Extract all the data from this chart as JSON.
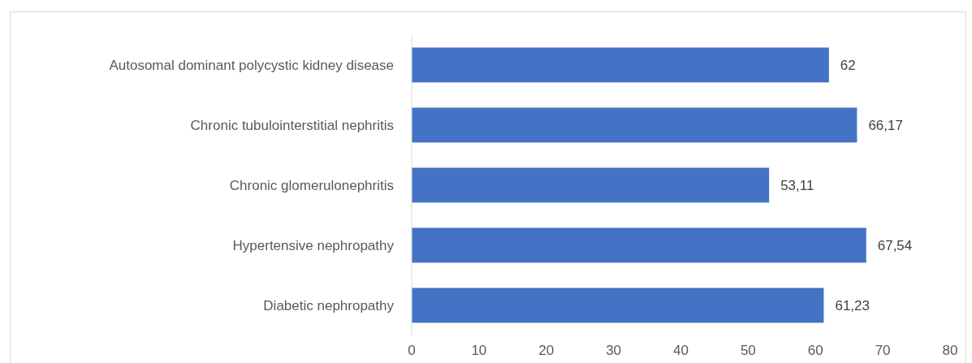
{
  "chart_data": {
    "type": "bar",
    "orientation": "horizontal",
    "categories": [
      "Autosomal dominant polycystic kidney disease",
      "Chronic tubulointerstitial nephritis",
      "Chronic glomerulonephritis",
      "Hypertensive nephropathy",
      "Diabetic nephropathy"
    ],
    "values": [
      62,
      66.17,
      53.11,
      67.54,
      61.23
    ],
    "value_labels": [
      "62",
      "66,17",
      "53,11",
      "67,54",
      "61,23"
    ],
    "color": "#4472c4",
    "xlim": [
      0,
      80
    ],
    "xticks": [
      0,
      10,
      20,
      30,
      40,
      50,
      60,
      70,
      80
    ]
  }
}
